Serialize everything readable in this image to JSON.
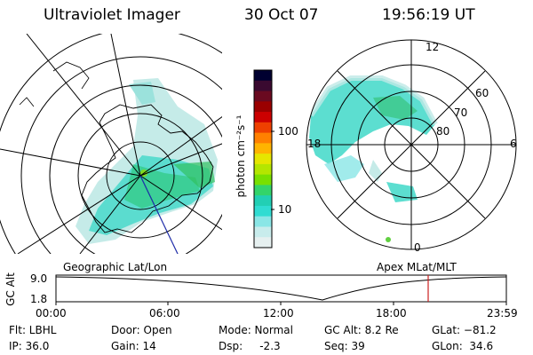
{
  "header": {
    "instrument": "Ultraviolet Imager",
    "date": "30 Oct 07",
    "time": "19:56:19 UT"
  },
  "colorbar": {
    "unit_label": "photon cm⁻²s⁻¹",
    "tick_labels": [
      "100",
      "10"
    ],
    "colors": [
      "#000030",
      "#3a0a30",
      "#6a0a20",
      "#9a0000",
      "#cc0000",
      "#ee4000",
      "#ff8000",
      "#ffb400",
      "#e6e600",
      "#b4e600",
      "#78e000",
      "#33d46a",
      "#22cfb4",
      "#30dcd2",
      "#8ae6e6",
      "#c8ecec",
      "#e6f0f0"
    ]
  },
  "left_map": {
    "label": "Geographic Lat/Lon"
  },
  "right_map": {
    "label": "Apex  MLat/MLT",
    "mlt_labels": {
      "top": "12",
      "left": "18",
      "right": "6",
      "bottom": "0"
    },
    "lat_labels": [
      "60",
      "70",
      "80"
    ]
  },
  "altitude_plot": {
    "ylabel": "GC Alt",
    "y_ticks": [
      "9.0",
      "1.8"
    ],
    "x_ticks": [
      "00:00",
      "06:00",
      "12:00",
      "18:00",
      "23:59"
    ],
    "marker_color": "#cc2020"
  },
  "status": {
    "flt": "Flt: LBHL",
    "ip": "IP: 36.0",
    "door": "Door: Open",
    "gain": "Gain: 14",
    "mode": "Mode: Normal",
    "dsp": "Dsp:     -2.3",
    "gc_alt": "GC Alt: 8.2 Re",
    "seq": "Seq: 39",
    "glat": "GLat: −81.2",
    "glon": "GLon:  34.6"
  }
}
